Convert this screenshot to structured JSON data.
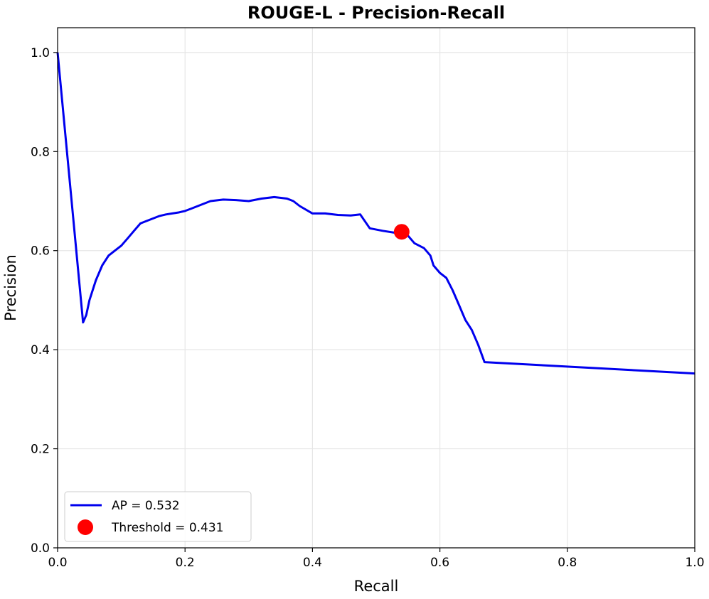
{
  "chart_data": {
    "type": "line",
    "title": "ROUGE-L - Precision-Recall",
    "xlabel": "Recall",
    "ylabel": "Precision",
    "xlim": [
      0.0,
      1.0
    ],
    "ylim": [
      0.0,
      1.05
    ],
    "xticks": [
      "0.0",
      "0.2",
      "0.4",
      "0.6",
      "0.8",
      "1.0"
    ],
    "yticks": [
      "0.0",
      "0.2",
      "0.4",
      "0.6",
      "0.8",
      "1.0"
    ],
    "grid": true,
    "legend_position": "lower-left",
    "series": [
      {
        "name": "AP = 0.532",
        "color": "#0000ee",
        "x": [
          0.0,
          0.04,
          0.045,
          0.05,
          0.06,
          0.07,
          0.08,
          0.09,
          0.1,
          0.11,
          0.12,
          0.13,
          0.14,
          0.15,
          0.16,
          0.17,
          0.18,
          0.19,
          0.2,
          0.21,
          0.22,
          0.24,
          0.26,
          0.28,
          0.3,
          0.32,
          0.34,
          0.36,
          0.37,
          0.38,
          0.4,
          0.42,
          0.44,
          0.46,
          0.475,
          0.49,
          0.51,
          0.53,
          0.54,
          0.55,
          0.56,
          0.575,
          0.585,
          0.59,
          0.6,
          0.61,
          0.62,
          0.63,
          0.64,
          0.65,
          0.66,
          0.67,
          1.0
        ],
        "y": [
          1.0,
          0.455,
          0.47,
          0.5,
          0.54,
          0.57,
          0.59,
          0.6,
          0.61,
          0.625,
          0.64,
          0.655,
          0.66,
          0.665,
          0.67,
          0.673,
          0.675,
          0.677,
          0.68,
          0.685,
          0.69,
          0.7,
          0.703,
          0.702,
          0.7,
          0.705,
          0.708,
          0.705,
          0.7,
          0.69,
          0.675,
          0.675,
          0.672,
          0.671,
          0.673,
          0.645,
          0.64,
          0.636,
          0.638,
          0.63,
          0.615,
          0.605,
          0.59,
          0.57,
          0.555,
          0.545,
          0.52,
          0.49,
          0.46,
          0.44,
          0.41,
          0.375,
          0.352
        ]
      }
    ],
    "threshold_point": {
      "name": "Threshold = 0.431",
      "x": 0.54,
      "y": 0.638,
      "color": "#ff0000"
    }
  }
}
